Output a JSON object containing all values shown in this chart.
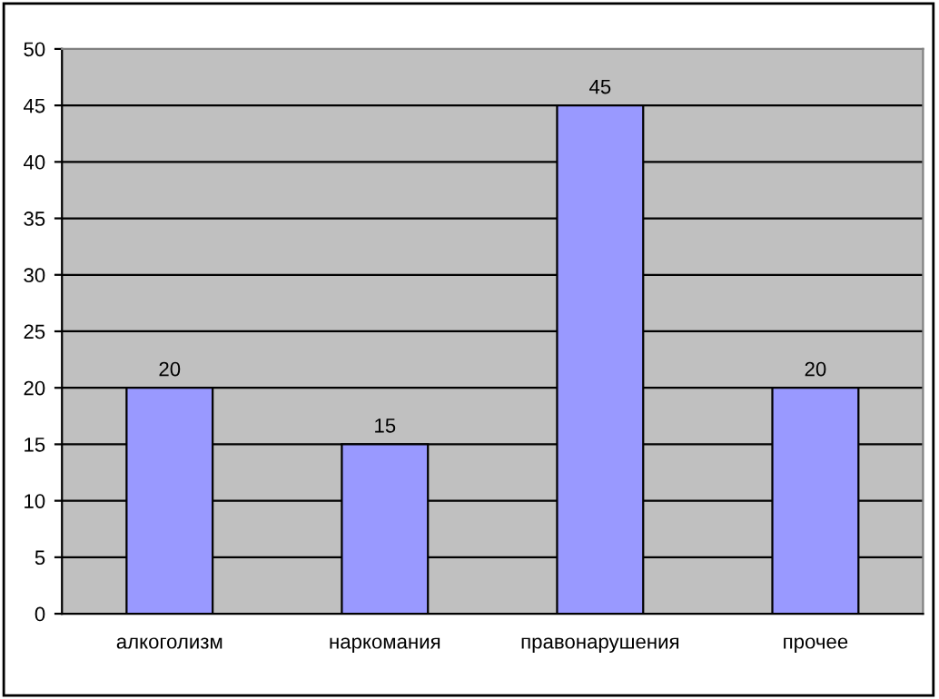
{
  "chart_data": {
    "type": "bar",
    "categories": [
      "алкоголизм",
      "наркомания",
      "правонарушения",
      "прочее"
    ],
    "values": [
      20,
      15,
      45,
      20
    ],
    "color": "#9999ff",
    "ylim": [
      0,
      50
    ],
    "yticks": [
      0,
      5,
      10,
      15,
      20,
      25,
      30,
      35,
      40,
      45,
      50
    ],
    "grid": "y",
    "data_labels": true,
    "legend": false
  }
}
